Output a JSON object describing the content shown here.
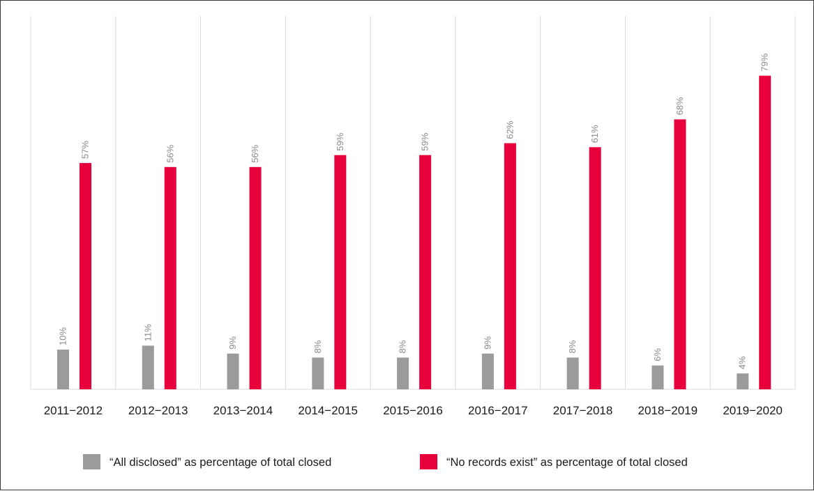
{
  "chart_data": {
    "type": "bar",
    "title": "",
    "xlabel": "",
    "ylabel": "",
    "ylim": [
      0,
      90
    ],
    "grid": "vertical separators between categories",
    "legend_position": "bottom",
    "categories": [
      "2011−2012",
      "2012−2013",
      "2013−2014",
      "2014−2015",
      "2015−2016",
      "2016−2017",
      "2017−2018",
      "2018−2019",
      "2019−2020"
    ],
    "series": [
      {
        "name": "“All disclosed” as percentage of total closed",
        "color": "#9b9b9b",
        "values": [
          10,
          11,
          9,
          8,
          8,
          9,
          8,
          6,
          4
        ],
        "labels": [
          "10%",
          "11%",
          "9%",
          "8%",
          "8%",
          "9%",
          "8%",
          "6%",
          "4%"
        ]
      },
      {
        "name": "“No records exist” as percentage of total closed",
        "color": "#e8003d",
        "values": [
          57,
          56,
          56,
          59,
          59,
          62,
          61,
          68,
          79
        ],
        "labels": [
          "57%",
          "56%",
          "56%",
          "59%",
          "59%",
          "62%",
          "61%",
          "68%",
          "79%"
        ]
      }
    ]
  }
}
